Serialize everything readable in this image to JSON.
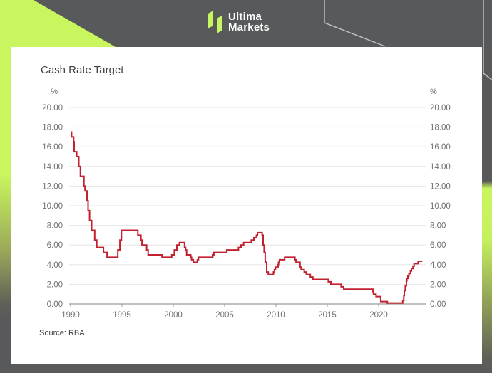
{
  "brand": {
    "name_line1": "Ultima",
    "name_line2": "Markets",
    "accent_green": "#c9f55e",
    "background_gray": "#58595b"
  },
  "card": {
    "title": "Cash Rate Target",
    "source": "Source: RBA"
  },
  "chart_data": {
    "type": "line",
    "title": "Cash Rate Target",
    "ylabel": "%",
    "source": "Source: RBA",
    "line_color": "#c2202e",
    "grid_color": "#e6e6e6",
    "axis_color": "#9b9b9b",
    "tick_label_color": "#6f6f6f",
    "grid": true,
    "legend": "none",
    "x_range": [
      1989.9,
      2024.7
    ],
    "ylim": [
      0,
      20
    ],
    "x_ticks": [
      1990,
      1995,
      2000,
      2005,
      2010,
      2015,
      2020
    ],
    "y_ticks": [
      0,
      2,
      4,
      6,
      8,
      10,
      12,
      14,
      16,
      18,
      20
    ],
    "y_tick_format_decimals": 2,
    "series": [
      {
        "name": "Cash Rate Target (%)",
        "step": "after",
        "points": [
          [
            1990.0,
            17.5
          ],
          [
            1990.1,
            17.0
          ],
          [
            1990.3,
            16.5
          ],
          [
            1990.35,
            15.5
          ],
          [
            1990.6,
            15.0
          ],
          [
            1990.8,
            14.0
          ],
          [
            1990.95,
            13.0
          ],
          [
            1991.3,
            12.0
          ],
          [
            1991.4,
            11.5
          ],
          [
            1991.6,
            10.5
          ],
          [
            1991.7,
            9.5
          ],
          [
            1991.85,
            8.5
          ],
          [
            1992.05,
            7.5
          ],
          [
            1992.35,
            6.5
          ],
          [
            1992.55,
            5.75
          ],
          [
            1993.2,
            5.25
          ],
          [
            1993.55,
            4.75
          ],
          [
            1994.6,
            5.5
          ],
          [
            1994.8,
            6.5
          ],
          [
            1994.95,
            7.5
          ],
          [
            1996.55,
            7.0
          ],
          [
            1996.85,
            6.5
          ],
          [
            1996.95,
            6.0
          ],
          [
            1997.4,
            5.5
          ],
          [
            1997.55,
            5.0
          ],
          [
            1998.9,
            4.75
          ],
          [
            1999.85,
            5.0
          ],
          [
            2000.1,
            5.5
          ],
          [
            2000.35,
            6.0
          ],
          [
            2000.6,
            6.25
          ],
          [
            2001.1,
            5.75
          ],
          [
            2001.2,
            5.5
          ],
          [
            2001.3,
            5.0
          ],
          [
            2001.7,
            4.75
          ],
          [
            2001.78,
            4.5
          ],
          [
            2001.95,
            4.25
          ],
          [
            2002.35,
            4.5
          ],
          [
            2002.45,
            4.75
          ],
          [
            2003.85,
            5.0
          ],
          [
            2003.95,
            5.25
          ],
          [
            2005.2,
            5.5
          ],
          [
            2006.35,
            5.75
          ],
          [
            2006.6,
            6.0
          ],
          [
            2006.85,
            6.25
          ],
          [
            2007.6,
            6.5
          ],
          [
            2007.85,
            6.75
          ],
          [
            2008.1,
            7.0
          ],
          [
            2008.2,
            7.25
          ],
          [
            2008.65,
            7.0
          ],
          [
            2008.75,
            6.0
          ],
          [
            2008.85,
            5.25
          ],
          [
            2008.95,
            4.25
          ],
          [
            2009.1,
            3.25
          ],
          [
            2009.25,
            3.0
          ],
          [
            2009.75,
            3.25
          ],
          [
            2009.85,
            3.5
          ],
          [
            2009.95,
            3.75
          ],
          [
            2010.2,
            4.0
          ],
          [
            2010.25,
            4.25
          ],
          [
            2010.35,
            4.5
          ],
          [
            2010.85,
            4.75
          ],
          [
            2011.85,
            4.5
          ],
          [
            2011.95,
            4.25
          ],
          [
            2012.35,
            3.75
          ],
          [
            2012.45,
            3.5
          ],
          [
            2012.75,
            3.25
          ],
          [
            2012.95,
            3.0
          ],
          [
            2013.35,
            2.75
          ],
          [
            2013.6,
            2.5
          ],
          [
            2015.1,
            2.25
          ],
          [
            2015.35,
            2.0
          ],
          [
            2016.35,
            1.75
          ],
          [
            2016.6,
            1.5
          ],
          [
            2019.45,
            1.25
          ],
          [
            2019.5,
            1.0
          ],
          [
            2019.75,
            0.75
          ],
          [
            2020.2,
            0.25
          ],
          [
            2020.85,
            0.1
          ],
          [
            2022.35,
            0.35
          ],
          [
            2022.45,
            0.85
          ],
          [
            2022.5,
            1.35
          ],
          [
            2022.6,
            1.85
          ],
          [
            2022.7,
            2.35
          ],
          [
            2022.75,
            2.6
          ],
          [
            2022.85,
            2.85
          ],
          [
            2022.95,
            3.1
          ],
          [
            2023.1,
            3.35
          ],
          [
            2023.2,
            3.6
          ],
          [
            2023.35,
            3.85
          ],
          [
            2023.45,
            4.1
          ],
          [
            2023.85,
            4.35
          ],
          [
            2024.25,
            4.35
          ]
        ]
      }
    ]
  }
}
